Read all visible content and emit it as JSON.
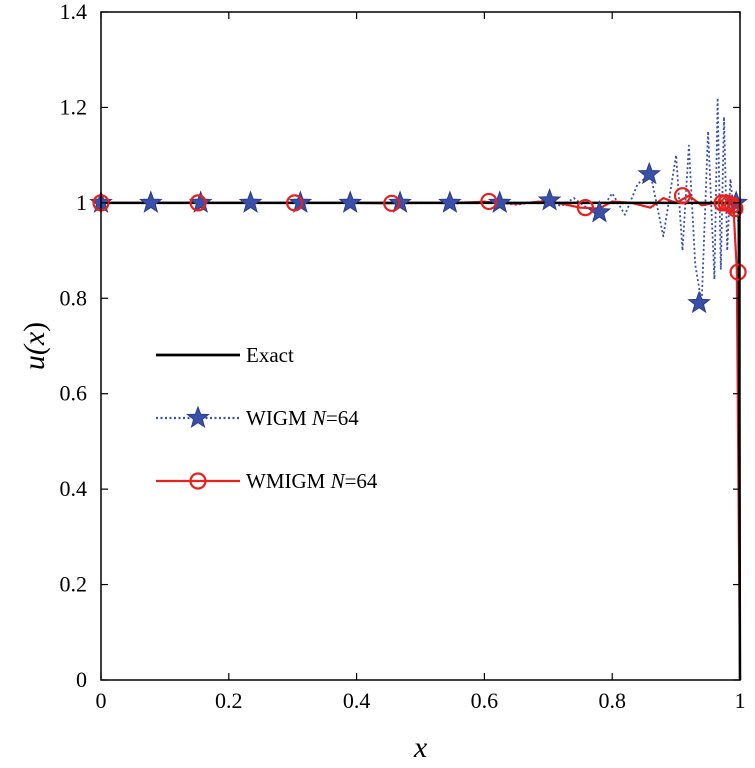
{
  "chart_data": {
    "type": "line",
    "title": "",
    "xlabel": "x",
    "ylabel_parts": [
      "u(",
      "x",
      ")"
    ],
    "xlim": [
      0,
      1
    ],
    "ylim": [
      0,
      1.4
    ],
    "xticks": [
      "0",
      "0.2",
      "0.4",
      "0.6",
      "0.8",
      "1"
    ],
    "xtick_values": [
      0,
      0.2,
      0.4,
      0.6,
      0.8,
      1
    ],
    "yticks": [
      "0",
      "0.2",
      "0.4",
      "0.6",
      "0.8",
      "1",
      "1.2",
      "1.4"
    ],
    "ytick_values": [
      0,
      0.2,
      0.4,
      0.6,
      0.8,
      1,
      1.2,
      1.4
    ],
    "grid": false,
    "legend_position": "middle-left",
    "series": [
      {
        "name": "Exact",
        "legend_parts": [
          "Exact",
          "",
          ""
        ],
        "color": "#000000",
        "style": "solid",
        "marker": "none",
        "x": [
          0,
          0.99,
          0.995,
          0.998,
          1.0
        ],
        "y": [
          1.0,
          1.0,
          0.999,
          0.99,
          0.0
        ]
      },
      {
        "name": "WIGM N=64",
        "legend_parts": [
          "WIGM  ",
          "N",
          "=64"
        ],
        "color": "#3a4fa8",
        "style": "dotted",
        "marker": "star",
        "x": [
          0,
          0.05,
          0.1,
          0.15,
          0.2,
          0.25,
          0.3,
          0.35,
          0.4,
          0.45,
          0.5,
          0.55,
          0.6,
          0.65,
          0.7,
          0.72,
          0.74,
          0.76,
          0.78,
          0.8,
          0.82,
          0.84,
          0.86,
          0.88,
          0.9,
          0.91,
          0.92,
          0.93,
          0.94,
          0.95,
          0.96,
          0.965,
          0.97,
          0.975,
          0.98,
          0.985,
          0.99,
          0.995,
          0.998,
          1.0
        ],
        "y": [
          1.0,
          1.0,
          1.0,
          1.0,
          1.0,
          1.0,
          1.0,
          1.0,
          1.0,
          0.999,
          1.001,
          0.998,
          1.003,
          0.996,
          1.006,
          0.993,
          1.01,
          0.99,
          0.98,
          1.02,
          0.975,
          1.04,
          1.06,
          0.93,
          1.1,
          0.9,
          1.12,
          0.87,
          0.79,
          1.15,
          0.84,
          1.22,
          0.86,
          1.18,
          0.9,
          1.05,
          0.98,
          0.99,
          0.95,
          0.0
        ],
        "marker_x": [
          0,
          0.078,
          0.156,
          0.234,
          0.312,
          0.39,
          0.468,
          0.546,
          0.624,
          0.702,
          0.78,
          0.858,
          0.936,
          0.994
        ],
        "marker_y": [
          1.0,
          1.0,
          1.0,
          1.0,
          1.0,
          1.0,
          1.0,
          1.0,
          1.0,
          1.005,
          0.98,
          1.06,
          0.79,
          1.0
        ]
      },
      {
        "name": "WMIGM N=64",
        "legend_parts": [
          "WMIGM  ",
          "N",
          "=64"
        ],
        "color": "#e8211e",
        "style": "solid",
        "marker": "circle",
        "x": [
          0,
          0.1,
          0.2,
          0.3,
          0.4,
          0.45,
          0.5,
          0.55,
          0.6,
          0.65,
          0.7,
          0.75,
          0.78,
          0.8,
          0.83,
          0.86,
          0.88,
          0.9,
          0.92,
          0.94,
          0.96,
          0.97,
          0.975,
          0.98,
          0.985,
          0.99,
          0.995,
          1.0
        ],
        "y": [
          1.0,
          1.0,
          1.0,
          1.0,
          1.0,
          0.999,
          1.0,
          1.0,
          1.002,
          0.998,
          1.004,
          0.99,
          0.988,
          1.003,
          1.0,
          0.99,
          1.01,
          1.0,
          1.015,
          0.995,
          1.0,
          1.005,
          0.995,
          1.0,
          1.0,
          0.985,
          0.86,
          0.0
        ],
        "marker_x": [
          0,
          0.152,
          0.303,
          0.455,
          0.607,
          0.758,
          0.91,
          0.972,
          0.978,
          0.983,
          0.988,
          0.992,
          0.997
        ],
        "marker_y": [
          1.0,
          1.0,
          1.0,
          0.999,
          1.003,
          0.99,
          1.015,
          1.0,
          1.0,
          0.998,
          0.995,
          0.988,
          0.855
        ]
      }
    ]
  }
}
